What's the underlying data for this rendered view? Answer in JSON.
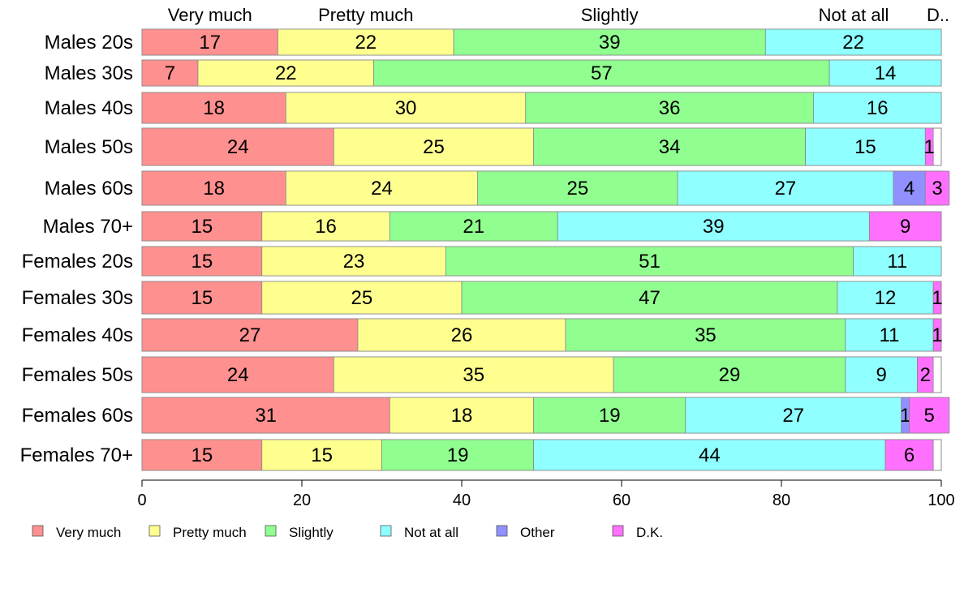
{
  "chart_data": {
    "type": "bar",
    "orientation": "horizontal",
    "stacked": true,
    "xlim": [
      0,
      100
    ],
    "xticks": [
      0,
      20,
      40,
      60,
      80,
      100
    ],
    "top_category_labels": [
      "Very much",
      "Pretty much",
      "Slightly",
      "Not at all",
      "D.."
    ],
    "categories": [
      "Males 20s",
      "Males 30s",
      "Males 40s",
      "Males 50s",
      "Males 60s",
      "Males 70+",
      "Females 20s",
      "Females 30s",
      "Females 40s",
      "Females 50s",
      "Females 60s",
      "Females 70+"
    ],
    "series": [
      {
        "name": "Very much",
        "color": "#ff9090",
        "values": [
          17,
          7,
          18,
          24,
          18,
          15,
          15,
          15,
          27,
          24,
          31,
          15
        ]
      },
      {
        "name": "Pretty much",
        "color": "#ffff90",
        "values": [
          22,
          22,
          30,
          25,
          24,
          16,
          23,
          25,
          26,
          35,
          18,
          15
        ]
      },
      {
        "name": "Slightly",
        "color": "#90ff90",
        "values": [
          39,
          57,
          36,
          34,
          25,
          21,
          51,
          47,
          35,
          29,
          19,
          19
        ]
      },
      {
        "name": "Not at all",
        "color": "#90ffff",
        "values": [
          22,
          14,
          16,
          15,
          27,
          39,
          11,
          12,
          11,
          9,
          27,
          44
        ]
      },
      {
        "name": "Other",
        "color": "#9090ff",
        "values": [
          0,
          0,
          0,
          0,
          4,
          0,
          0,
          0,
          0,
          0,
          1,
          0
        ]
      },
      {
        "name": "D.K.",
        "color": "#ff70ff",
        "values": [
          0,
          0,
          0,
          1,
          3,
          9,
          0,
          1,
          1,
          2,
          5,
          6
        ]
      }
    ],
    "legend_position": "bottom",
    "grid": false
  }
}
